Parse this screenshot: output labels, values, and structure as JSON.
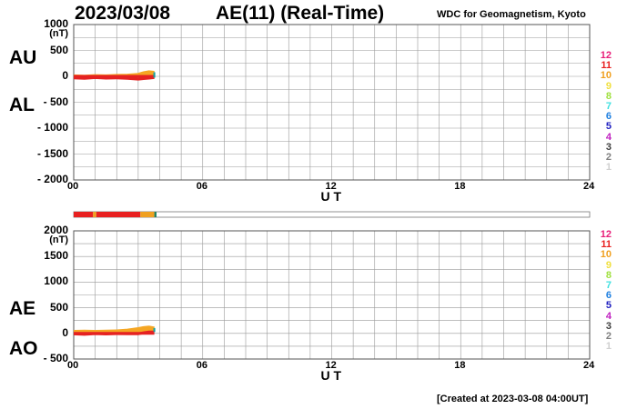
{
  "header": {
    "date": "2023/03/08",
    "title": "AE(11) (Real-Time)",
    "organization": "WDC for Geomagnetism, Kyoto"
  },
  "footer": {
    "created": "[Created at 2023-03-08 04:00UT]"
  },
  "colors": {
    "au_al_line": "#e52222",
    "upper_fill": "#f5a623",
    "accent_teal": "#10a0a0",
    "grid": "#999999"
  },
  "chart_data": [
    {
      "type": "line",
      "name": "AU/AL panel",
      "ylim": [
        -2000,
        1000
      ],
      "yunit": "(nT)",
      "yticks": [
        "1000",
        "500",
        "0",
        "- 500",
        "- 1000",
        "- 1500",
        "- 2000"
      ],
      "ytick_values": [
        1000,
        500,
        0,
        -500,
        -1000,
        -1500,
        -2000
      ],
      "xlim": [
        0,
        24
      ],
      "xticks": [
        "00",
        "06",
        "12",
        "18",
        "24"
      ],
      "xtick_values": [
        0,
        6,
        12,
        18,
        24
      ],
      "xlabel": "U T",
      "labels": [
        "AU",
        "AL"
      ],
      "x": [
        0,
        0.5,
        1,
        1.5,
        2,
        2.5,
        3,
        3.25,
        3.5,
        3.75
      ],
      "series": [
        {
          "name": "AU",
          "values": [
            10,
            5,
            15,
            10,
            20,
            25,
            40,
            70,
            90,
            80
          ]
        },
        {
          "name": "AL",
          "values": [
            -30,
            -40,
            -25,
            -35,
            -30,
            -40,
            -55,
            -45,
            -35,
            -25
          ]
        }
      ],
      "legend": [
        "12",
        "11",
        "10",
        "9",
        "8",
        "7",
        "6",
        "5",
        "4",
        "3",
        "2",
        "1"
      ],
      "legend_colors": [
        "#e8207a",
        "#e82020",
        "#f0a020",
        "#f0e040",
        "#a0e040",
        "#40e0e0",
        "#2080e0",
        "#2020c0",
        "#c020c0",
        "#404040",
        "#808080",
        "#d0d0d0"
      ]
    },
    {
      "type": "line",
      "name": "AE/AO panel",
      "ylim": [
        -500,
        2000
      ],
      "yunit": "(nT)",
      "yticks": [
        "2000",
        "1500",
        "1000",
        "500",
        "0",
        "- 500"
      ],
      "ytick_values": [
        2000,
        1500,
        1000,
        500,
        0,
        -500
      ],
      "xlim": [
        0,
        24
      ],
      "xticks": [
        "00",
        "06",
        "12",
        "18",
        "24"
      ],
      "xtick_values": [
        0,
        6,
        12,
        18,
        24
      ],
      "xlabel": "U T",
      "labels": [
        "AE",
        "AO"
      ],
      "x": [
        0,
        0.5,
        1,
        1.5,
        2,
        2.5,
        3,
        3.25,
        3.5,
        3.75
      ],
      "series": [
        {
          "name": "AE",
          "values": [
            40,
            45,
            40,
            45,
            50,
            65,
            95,
            115,
            125,
            105
          ]
        },
        {
          "name": "AO",
          "values": [
            -10,
            -18,
            -5,
            -12,
            -5,
            -8,
            -8,
            12,
            28,
            28
          ]
        }
      ],
      "legend": [
        "12",
        "11",
        "10",
        "9",
        "8",
        "7",
        "6",
        "5",
        "4",
        "3",
        "2",
        "1"
      ],
      "legend_colors": [
        "#e8207a",
        "#e82020",
        "#f0a020",
        "#f0e040",
        "#a0e040",
        "#40e0e0",
        "#2080e0",
        "#2020c0",
        "#c020c0",
        "#404040",
        "#808080",
        "#d0d0d0"
      ]
    }
  ],
  "status_bar": {
    "segments": [
      {
        "start": 0,
        "end": 0.9,
        "color": "#e82020"
      },
      {
        "start": 0.9,
        "end": 1.05,
        "color": "#f0a020"
      },
      {
        "start": 1.05,
        "end": 3.1,
        "color": "#e82020"
      },
      {
        "start": 3.1,
        "end": 3.75,
        "color": "#f0a020"
      },
      {
        "start": 3.75,
        "end": 3.85,
        "color": "#208060"
      }
    ]
  }
}
